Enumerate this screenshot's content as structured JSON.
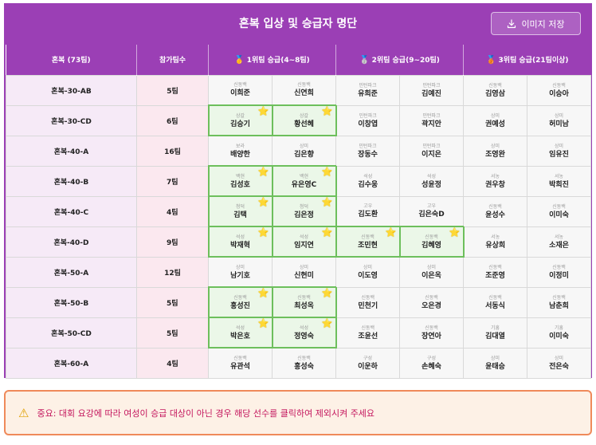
{
  "header": {
    "title": "혼복 입상 및 승급자 명단",
    "save_label": "이미지 저장"
  },
  "columns": {
    "group": "혼복 (73팀)",
    "count": "참가팀수",
    "tier1": "1위팀 승급(4~8팀)",
    "tier2": "2위팀 승급(9~20팀)",
    "tier3": "3위팀 승급(21팀이상)",
    "tier1_medal": "🥇",
    "tier2_medal": "🥈",
    "tier3_medal": "🥉"
  },
  "rows": [
    {
      "group": "혼복-30-AB",
      "count": "5팀",
      "players": [
        {
          "region": "신동백",
          "name": "이희준",
          "hl": false
        },
        {
          "region": "신동백",
          "name": "신연희",
          "hl": false
        },
        {
          "region": "민턴파크",
          "name": "유희준",
          "hl": false
        },
        {
          "region": "민턴파크",
          "name": "김예진",
          "hl": false
        },
        {
          "region": "신동백",
          "name": "김영삼",
          "hl": false
        },
        {
          "region": "신동백",
          "name": "이승아",
          "hl": false
        }
      ]
    },
    {
      "group": "혼복-30-CD",
      "count": "6팀",
      "players": [
        {
          "region": "상갈",
          "name": "김승기",
          "hl": true
        },
        {
          "region": "상갈",
          "name": "황선혜",
          "hl": true
        },
        {
          "region": "민턴파크",
          "name": "이창엽",
          "hl": false
        },
        {
          "region": "민턴파크",
          "name": "곽지안",
          "hl": false
        },
        {
          "region": "상미",
          "name": "권예성",
          "hl": false
        },
        {
          "region": "상미",
          "name": "허미남",
          "hl": false
        }
      ]
    },
    {
      "group": "혼복-40-A",
      "count": "16팀",
      "players": [
        {
          "region": "보라",
          "name": "배양한",
          "hl": false
        },
        {
          "region": "상미",
          "name": "김은향",
          "hl": false
        },
        {
          "region": "민턴파크",
          "name": "장동수",
          "hl": false
        },
        {
          "region": "민턴파크",
          "name": "이지은",
          "hl": false
        },
        {
          "region": "상미",
          "name": "조영완",
          "hl": false
        },
        {
          "region": "상미",
          "name": "임유진",
          "hl": false
        }
      ]
    },
    {
      "group": "혼복-40-B",
      "count": "7팀",
      "players": [
        {
          "region": "백현",
          "name": "김성호",
          "hl": true
        },
        {
          "region": "백현",
          "name": "유은영C",
          "hl": true
        },
        {
          "region": "석성",
          "name": "김수웅",
          "hl": false
        },
        {
          "region": "석성",
          "name": "성윤정",
          "hl": false
        },
        {
          "region": "서농",
          "name": "권우창",
          "hl": false
        },
        {
          "region": "서농",
          "name": "박희진",
          "hl": false
        }
      ]
    },
    {
      "group": "혼복-40-C",
      "count": "4팀",
      "players": [
        {
          "region": "청덕",
          "name": "김택",
          "hl": true
        },
        {
          "region": "청덕",
          "name": "김은정",
          "hl": true
        },
        {
          "region": "고우",
          "name": "김도환",
          "hl": false
        },
        {
          "region": "고우",
          "name": "김은숙D",
          "hl": false
        },
        {
          "region": "신동백",
          "name": "윤성수",
          "hl": false
        },
        {
          "region": "신동백",
          "name": "이미숙",
          "hl": false
        }
      ]
    },
    {
      "group": "혼복-40-D",
      "count": "9팀",
      "players": [
        {
          "region": "석성",
          "name": "박재혁",
          "hl": true
        },
        {
          "region": "석성",
          "name": "임지연",
          "hl": true
        },
        {
          "region": "신동백",
          "name": "조민현",
          "hl": true
        },
        {
          "region": "신동백",
          "name": "김혜영",
          "hl": true
        },
        {
          "region": "서농",
          "name": "유상희",
          "hl": false
        },
        {
          "region": "서농",
          "name": "소재은",
          "hl": false
        }
      ]
    },
    {
      "group": "혼복-50-A",
      "count": "12팀",
      "players": [
        {
          "region": "상미",
          "name": "남기호",
          "hl": false
        },
        {
          "region": "상미",
          "name": "신현미",
          "hl": false
        },
        {
          "region": "상미",
          "name": "이도영",
          "hl": false
        },
        {
          "region": "상미",
          "name": "이은옥",
          "hl": false
        },
        {
          "region": "신동백",
          "name": "조준영",
          "hl": false
        },
        {
          "region": "신동백",
          "name": "이정미",
          "hl": false
        }
      ]
    },
    {
      "group": "혼복-50-B",
      "count": "5팀",
      "players": [
        {
          "region": "신동백",
          "name": "홍성진",
          "hl": true
        },
        {
          "region": "신동백",
          "name": "최성옥",
          "hl": true
        },
        {
          "region": "신동백",
          "name": "민천기",
          "hl": false
        },
        {
          "region": "신동백",
          "name": "오은경",
          "hl": false
        },
        {
          "region": "신동백",
          "name": "서동식",
          "hl": false
        },
        {
          "region": "신동백",
          "name": "남춘희",
          "hl": false
        }
      ]
    },
    {
      "group": "혼복-50-CD",
      "count": "5팀",
      "players": [
        {
          "region": "석성",
          "name": "박은호",
          "hl": true
        },
        {
          "region": "석성",
          "name": "정영숙",
          "hl": true
        },
        {
          "region": "신동백",
          "name": "조윤선",
          "hl": false
        },
        {
          "region": "신동백",
          "name": "장연아",
          "hl": false
        },
        {
          "region": "기흥",
          "name": "김대열",
          "hl": false
        },
        {
          "region": "기흥",
          "name": "이미숙",
          "hl": false
        }
      ]
    },
    {
      "group": "혼복-60-A",
      "count": "4팀",
      "players": [
        {
          "region": "신동백",
          "name": "유관석",
          "hl": false
        },
        {
          "region": "신동백",
          "name": "홍성숙",
          "hl": false
        },
        {
          "region": "구성",
          "name": "이운하",
          "hl": false
        },
        {
          "region": "구성",
          "name": "손혜숙",
          "hl": false
        },
        {
          "region": "상미",
          "name": "윤태승",
          "hl": false
        },
        {
          "region": "상미",
          "name": "전은숙",
          "hl": false
        }
      ]
    }
  ],
  "notice": {
    "icon": "warning-icon",
    "star_icon": "⭐",
    "text": "중요: 대회 요강에 따라 여성이 승급 대상이 아닌 경우 해당 선수를 클릭하여 제외시켜 주세요"
  }
}
